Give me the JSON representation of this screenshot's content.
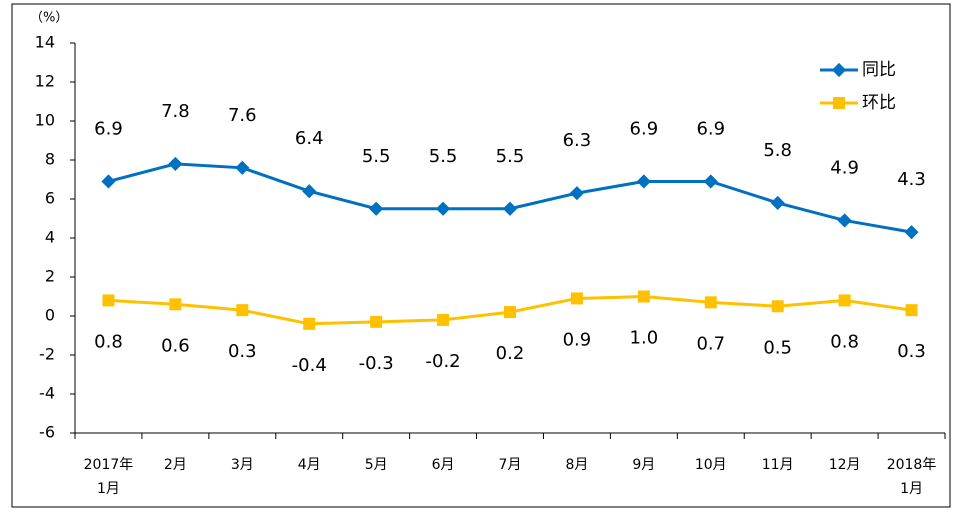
{
  "chart_data": {
    "type": "line",
    "y_label": "（%）",
    "categories": [
      "2017年\n1月",
      "2月",
      "3月",
      "4月",
      "5月",
      "6月",
      "7月",
      "8月",
      "9月",
      "10月",
      "11月",
      "12月",
      "2018年\n1月"
    ],
    "series": [
      {
        "name": "同比",
        "color": "#0070c0",
        "values": [
          6.9,
          7.8,
          7.6,
          6.4,
          5.5,
          5.5,
          5.5,
          6.3,
          6.9,
          6.9,
          5.8,
          4.9,
          4.3
        ]
      },
      {
        "name": "环比",
        "color": "#ffc000",
        "values": [
          0.8,
          0.6,
          0.3,
          -0.4,
          -0.3,
          -0.2,
          0.2,
          0.9,
          1.0,
          0.7,
          0.5,
          0.8,
          0.3
        ],
        "value_labels": [
          "0.8",
          "0.6",
          "0.3",
          "-0.4",
          "-0.3",
          "-0.2",
          "0.2",
          "0.9",
          "1.0",
          "0.7",
          "0.5",
          "0.8",
          "0.3"
        ]
      }
    ],
    "ylim": [
      -6,
      14
    ],
    "yticks": [
      -6,
      -4,
      -2,
      0,
      2,
      4,
      6,
      8,
      10,
      12,
      14
    ],
    "legend": "top-right",
    "grid": false
  }
}
